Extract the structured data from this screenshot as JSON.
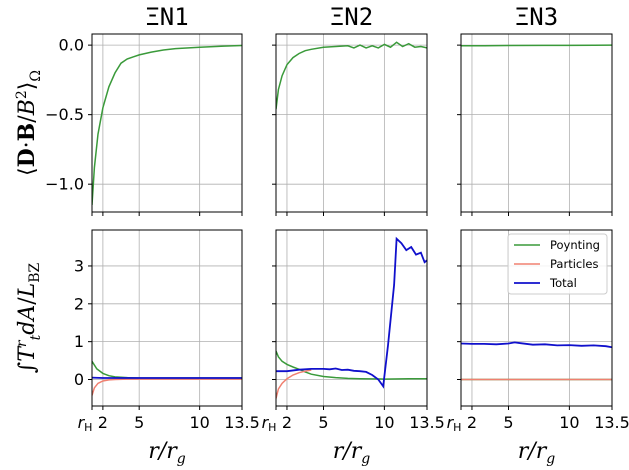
{
  "chart_data": [
    {
      "type": "line",
      "panel": "ΞN1",
      "title": "ΞN1",
      "ylabel": "⟨D·B/B²⟩_Ω",
      "xlabel": "",
      "xlim": [
        1.1,
        13.5
      ],
      "ylim": [
        -1.2,
        0.08
      ],
      "yticks": [
        0.0,
        -0.5,
        -1.0
      ],
      "ytick_labels": [
        "0.0",
        "−0.5",
        "−1.0"
      ],
      "xticks": [
        1.1,
        2,
        5,
        10,
        13.5
      ],
      "grid": true,
      "series": [
        {
          "key": "poynting",
          "color": "#3a9a3a",
          "x": [
            1.1,
            1.3,
            1.6,
            2.0,
            2.5,
            3.0,
            3.5,
            4.0,
            4.5,
            5.0,
            6.0,
            7.0,
            8.0,
            10.0,
            12.0,
            13.5
          ],
          "y": [
            -1.15,
            -0.88,
            -0.64,
            -0.45,
            -0.3,
            -0.2,
            -0.13,
            -0.1,
            -0.085,
            -0.07,
            -0.05,
            -0.035,
            -0.025,
            -0.015,
            -0.007,
            -0.003
          ]
        }
      ]
    },
    {
      "type": "line",
      "panel": "ΞN2",
      "title": "ΞN2",
      "xlim": [
        1.1,
        13.5
      ],
      "ylim": [
        -1.2,
        0.08
      ],
      "xticks": [
        1.1,
        2,
        5,
        10,
        13.5
      ],
      "grid": true,
      "series": [
        {
          "key": "poynting",
          "color": "#3a9a3a",
          "x": [
            1.1,
            1.3,
            1.6,
            2.0,
            2.5,
            3.0,
            3.5,
            4.0,
            5.0,
            6.0,
            7.0,
            7.5,
            8.0,
            8.5,
            9.0,
            9.5,
            10.0,
            10.5,
            11.0,
            11.5,
            12.0,
            12.5,
            13.0,
            13.5
          ],
          "y": [
            -0.46,
            -0.32,
            -0.22,
            -0.14,
            -0.09,
            -0.06,
            -0.04,
            -0.03,
            -0.015,
            -0.01,
            -0.005,
            -0.02,
            0.0,
            -0.02,
            -0.005,
            -0.02,
            0.005,
            -0.015,
            0.02,
            -0.01,
            0.01,
            -0.015,
            -0.01,
            -0.02
          ]
        }
      ]
    },
    {
      "type": "line",
      "panel": "ΞN3",
      "title": "ΞN3",
      "xlim": [
        1.1,
        13.5
      ],
      "ylim": [
        -1.2,
        0.08
      ],
      "xticks": [
        1.1,
        2,
        5,
        10,
        13.5
      ],
      "grid": true,
      "series": [
        {
          "key": "poynting",
          "color": "#3a9a3a",
          "x": [
            1.1,
            3.0,
            5.0,
            8.0,
            10.0,
            12.0,
            13.5
          ],
          "y": [
            -0.005,
            -0.004,
            -0.003,
            -0.002,
            -0.002,
            -0.001,
            0.0
          ]
        }
      ]
    },
    {
      "type": "line",
      "panel": "ΞN1",
      "ylabel": "∫T^r_t dA/L_BZ",
      "xlabel": "r/r_g",
      "xlim": [
        1.1,
        13.5
      ],
      "ylim": [
        -0.7,
        3.95
      ],
      "yticks": [
        3,
        2,
        1,
        0
      ],
      "ytick_labels": [
        "3",
        "2",
        "1",
        "0"
      ],
      "xticks": [
        1.1,
        2,
        5,
        10,
        13.5
      ],
      "xtick_labels": [
        "r_H",
        "2",
        "5",
        "10",
        "13.5"
      ],
      "grid": true,
      "series": [
        {
          "key": "poynting",
          "color": "#3a9a3a",
          "x": [
            1.1,
            1.5,
            2.0,
            2.5,
            3.0,
            4.0,
            5.0,
            8.0,
            13.5
          ],
          "y": [
            0.48,
            0.28,
            0.16,
            0.1,
            0.07,
            0.05,
            0.04,
            0.04,
            0.04
          ]
        },
        {
          "key": "particles",
          "color": "#f08070",
          "x": [
            1.1,
            1.3,
            1.6,
            2.0,
            2.5,
            3.0,
            4.0,
            5.0,
            8.0,
            13.5
          ],
          "y": [
            -0.42,
            -0.22,
            -0.1,
            -0.04,
            -0.01,
            0.0,
            0.01,
            0.01,
            0.01,
            0.01
          ]
        },
        {
          "key": "total",
          "color": "#1010cc",
          "x": [
            1.1,
            2.0,
            3.0,
            5.0,
            8.0,
            13.5
          ],
          "y": [
            0.05,
            0.04,
            0.04,
            0.04,
            0.04,
            0.04
          ]
        }
      ]
    },
    {
      "type": "line",
      "panel": "ΞN2",
      "xlabel": "r/r_g",
      "xlim": [
        1.1,
        13.5
      ],
      "ylim": [
        -0.7,
        3.95
      ],
      "xticks": [
        1.1,
        2,
        5,
        10,
        13.5
      ],
      "xtick_labels": [
        "r_H",
        "2",
        "5",
        "10",
        "13.5"
      ],
      "grid": true,
      "series": [
        {
          "key": "poynting",
          "color": "#3a9a3a",
          "x": [
            1.1,
            1.3,
            1.6,
            2.0,
            2.5,
            3.0,
            3.5,
            4.0,
            5.0,
            6.0,
            7.0,
            8.0,
            10.0,
            12.0,
            13.5
          ],
          "y": [
            0.75,
            0.6,
            0.48,
            0.4,
            0.33,
            0.27,
            0.2,
            0.14,
            0.08,
            0.05,
            0.03,
            0.02,
            0.01,
            0.02,
            0.02
          ]
        },
        {
          "key": "particles",
          "color": "#f08070",
          "x": [
            1.1,
            1.3,
            1.6,
            2.0,
            2.5,
            3.0,
            3.5,
            4.0
          ],
          "y": [
            -0.5,
            -0.25,
            -0.1,
            0.02,
            0.12,
            0.18,
            0.22,
            0.25
          ]
        },
        {
          "key": "total",
          "color": "#1010cc",
          "x": [
            1.1,
            2.0,
            3.0,
            4.0,
            5.0,
            5.5,
            6.0,
            6.5,
            7.0,
            7.5,
            8.0,
            8.5,
            9.0,
            9.5,
            9.9,
            10.3,
            10.8,
            11.0,
            11.4,
            11.8,
            12.2,
            12.6,
            13.0,
            13.3,
            13.5
          ],
          "y": [
            0.22,
            0.22,
            0.26,
            0.28,
            0.28,
            0.27,
            0.29,
            0.25,
            0.26,
            0.23,
            0.22,
            0.2,
            0.12,
            0.0,
            -0.18,
            0.9,
            2.5,
            3.72,
            3.6,
            3.42,
            3.5,
            3.3,
            3.35,
            3.1,
            3.15
          ]
        }
      ]
    },
    {
      "type": "line",
      "panel": "ΞN3",
      "xlabel": "r/r_g",
      "xlim": [
        1.1,
        13.5
      ],
      "ylim": [
        -0.7,
        3.95
      ],
      "xticks": [
        1.1,
        2,
        5,
        10,
        13.5
      ],
      "xtick_labels": [
        "r_H",
        "2",
        "5",
        "10",
        "13.5"
      ],
      "grid": true,
      "legend": "top-right",
      "series": [
        {
          "key": "poynting",
          "name": "Poynting",
          "color": "#3a9a3a",
          "x": [
            1.1,
            13.5
          ],
          "y": [
            0.0,
            0.0
          ]
        },
        {
          "key": "particles",
          "name": "Particles",
          "color": "#f08070",
          "x": [
            1.1,
            13.5
          ],
          "y": [
            0.0,
            0.0
          ]
        },
        {
          "key": "total",
          "name": "Total",
          "color": "#1010cc",
          "x": [
            1.1,
            2.0,
            3.0,
            4.0,
            5.0,
            5.5,
            6.0,
            7.0,
            8.0,
            9.0,
            10.0,
            11.0,
            12.0,
            13.0,
            13.5
          ],
          "y": [
            0.95,
            0.94,
            0.94,
            0.93,
            0.95,
            0.98,
            0.96,
            0.92,
            0.93,
            0.9,
            0.91,
            0.89,
            0.9,
            0.88,
            0.85
          ]
        }
      ]
    }
  ],
  "legend": {
    "entries": [
      {
        "label": "Poynting",
        "color": "#3a9a3a"
      },
      {
        "label": "Particles",
        "color": "#f08070"
      },
      {
        "label": "Total",
        "color": "#1010cc"
      }
    ]
  }
}
